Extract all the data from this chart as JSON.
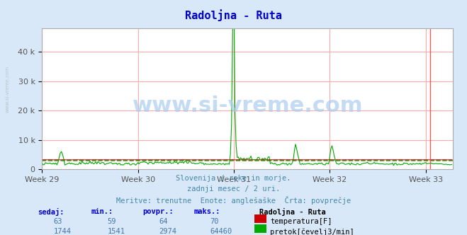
{
  "title": "Radoljna - Ruta",
  "title_color": "#0000cc",
  "bg_color": "#d8e8f8",
  "plot_bg_color": "#ffffff",
  "grid_color": "#ffaaaa",
  "weeks": [
    "Week 29",
    "Week 30",
    "Week 31",
    "Week 32",
    "Week 33"
  ],
  "week_positions": [
    0,
    84,
    168,
    252,
    336
  ],
  "total_points": 360,
  "xlim": [
    0,
    360
  ],
  "ylim": [
    0,
    48000
  ],
  "yticks": [
    0,
    10000,
    20000,
    30000,
    40000
  ],
  "yticklabels": [
    "0",
    "10 k",
    "20 k",
    "30 k",
    "40 k"
  ],
  "temp_color": "#cc0000",
  "flow_color": "#00aa00",
  "temp_avg": 64,
  "flow_avg": 2974,
  "flow_max": 64460,
  "watermark": "www.si-vreme.com",
  "subtitle1": "Slovenija / reke in morje.",
  "subtitle2": "zadnji mesec / 2 uri.",
  "subtitle3": "Meritve: trenutne  Enote: anglešaške  Črta: povprečje",
  "table_headers": [
    "sedaj:",
    "min.:",
    "povpr.:",
    "maks.:"
  ],
  "table_row1": [
    "63",
    "59",
    "64",
    "70"
  ],
  "table_row2": [
    "1744",
    "1541",
    "2974",
    "64460"
  ],
  "legend_station": "Radoljna - Ruta",
  "legend_temp": "temperatura[F]",
  "legend_flow": "pretok[čevelj3/min]",
  "vline_color": "#ff4444",
  "vline_pos": 340
}
